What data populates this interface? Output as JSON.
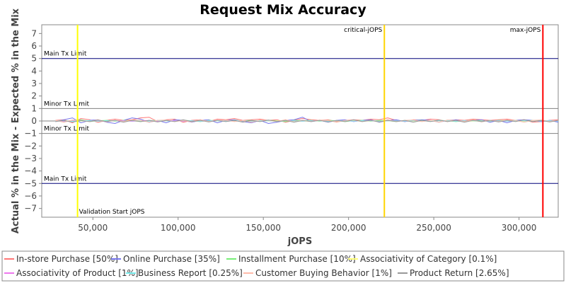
{
  "chart_data": {
    "type": "line",
    "title": "Request Mix Accuracy",
    "xlabel": "jOPS",
    "ylabel": "Actual % in the Mix - Expected % in the Mix",
    "xlim": [
      20000,
      323000
    ],
    "ylim": [
      -7.7,
      7.7
    ],
    "x_ticks": [
      50000,
      100000,
      150000,
      200000,
      250000,
      300000
    ],
    "x_tick_labels": [
      "50,000",
      "100,000",
      "150,000",
      "200,000",
      "250,000",
      "300,000"
    ],
    "y_ticks": [
      7,
      6,
      5,
      4,
      3,
      2,
      1,
      0,
      -1,
      -2,
      -3,
      -4,
      -5,
      -6,
      -7
    ],
    "y_tick_labels": [
      "7",
      "6",
      "5",
      "4",
      "3",
      "2",
      "1",
      "0",
      "−1",
      "−2",
      "−3",
      "−4",
      "−5",
      "−6",
      "−7"
    ],
    "grid": false,
    "legend_position": "bottom",
    "limit_lines": [
      {
        "label": "Main Tx Limit",
        "y": 5,
        "color": "#00007a",
        "label_side": "above"
      },
      {
        "label": "Minor Tx Limit",
        "y": 1,
        "color": "#808080",
        "label_side": "above"
      },
      {
        "label": "Minor Tx Limit",
        "y": -1,
        "color": "#808080",
        "label_side": "above"
      },
      {
        "label": "Main Tx Limit",
        "y": -5,
        "color": "#00007a",
        "label_side": "above"
      }
    ],
    "zero_line_color": "#808080",
    "vertical_markers": [
      {
        "label": "Validation Start jOPS",
        "x": 41000,
        "color": "#ffff00",
        "label_position": "bottom-right"
      },
      {
        "label": "critical-jOPS",
        "x": 221000,
        "color": "#ffd400",
        "label_position": "top-right"
      },
      {
        "label": "max-jOPS",
        "x": 314000,
        "color": "#ff0000",
        "label_position": "top-left"
      }
    ],
    "x": [
      28000,
      33000,
      38000,
      43000,
      48000,
      53000,
      58000,
      63000,
      68000,
      73000,
      78000,
      83000,
      88000,
      93000,
      98000,
      103000,
      108000,
      113000,
      118000,
      123000,
      128000,
      133000,
      138000,
      143000,
      148000,
      153000,
      158000,
      163000,
      168000,
      173000,
      178000,
      183000,
      188000,
      193000,
      198000,
      203000,
      208000,
      213000,
      218000,
      223000,
      228000,
      233000,
      238000,
      243000,
      248000,
      253000,
      258000,
      263000,
      268000,
      273000,
      278000,
      283000,
      288000,
      293000,
      298000,
      303000,
      308000,
      313000,
      318000,
      323000
    ],
    "series": [
      {
        "name": "In-store Purchase [50%]",
        "color": "#ff7777",
        "values": [
          0.05,
          0.1,
          -0.15,
          0.2,
          0.1,
          -0.1,
          0.05,
          0.15,
          0.05,
          0.1,
          0.25,
          0.3,
          -0.05,
          0.1,
          0.15,
          -0.1,
          0.05,
          0.1,
          -0.05,
          0.15,
          0.1,
          0.2,
          0.05,
          0.1,
          0.15,
          0.05,
          0.1,
          -0.1,
          0.05,
          0.2,
          0.1,
          0.05,
          0.1,
          -0.05,
          0.05,
          0.1,
          0.05,
          0.15,
          0.1,
          0.25,
          0.05,
          -0.05,
          0.1,
          0.05,
          0.15,
          0.1,
          -0.05,
          0.1,
          0.05,
          0.15,
          0.1,
          0.05,
          0.1,
          0.15,
          0.05,
          0.1,
          -0.1,
          -0.05,
          0.05,
          0.1
        ]
      },
      {
        "name": "Online Purchase [35%]",
        "color": "#7777ee",
        "values": [
          -0.05,
          0.1,
          0.25,
          -0.15,
          0.05,
          0.1,
          -0.1,
          -0.2,
          0.05,
          0.25,
          0.15,
          -0.1,
          0.05,
          -0.15,
          0.1,
          0.05,
          -0.1,
          0.05,
          0.1,
          -0.15,
          0.05,
          0.1,
          -0.05,
          -0.15,
          0.05,
          -0.2,
          -0.1,
          0.05,
          0.1,
          0.3,
          -0.05,
          0.05,
          -0.1,
          0.05,
          0.1,
          -0.05,
          0.05,
          0.1,
          -0.1,
          0.05,
          0.1,
          -0.05,
          0.05,
          0.1,
          0.05,
          -0.1,
          0.05,
          0.1,
          -0.05,
          0.05,
          0.1,
          -0.1,
          0.05,
          -0.15,
          0.05,
          0.1,
          0.05,
          -0.05,
          0.05,
          -0.1
        ]
      },
      {
        "name": "Installment Purchase [10%]",
        "color": "#77ee77",
        "values": [
          0.02,
          -0.05,
          0.05,
          0.1,
          -0.05,
          0.02,
          0.05,
          -0.02,
          0.05,
          0.02,
          -0.05,
          0.05,
          0.02,
          0.05,
          -0.02,
          0.05,
          0.02,
          -0.05,
          0.05,
          0.02,
          -0.02,
          0.05,
          0.02,
          0.05,
          -0.02,
          0.05,
          0.02,
          -0.05,
          0.05,
          0.02,
          0.05,
          -0.02,
          0.05,
          0.02,
          -0.05,
          0.02,
          0.05,
          -0.02,
          0.05,
          0.02,
          -0.05,
          0.05,
          0.02,
          0.05,
          -0.02,
          0.05,
          0.02,
          -0.05,
          0.02,
          0.05,
          0.02,
          -0.02,
          0.05,
          0.02,
          0.05,
          -0.02,
          0.05,
          0.02,
          -0.05,
          0.02
        ]
      },
      {
        "name": "Associativity of Category [0.1%]",
        "color": "#ffff77",
        "values": [
          0,
          0.01,
          0,
          -0.01,
          0,
          0.01,
          0,
          0,
          0.01,
          0,
          -0.01,
          0,
          0,
          0.01,
          0,
          0,
          -0.01,
          0,
          0.01,
          0,
          0,
          0.01,
          0,
          -0.01,
          0,
          0,
          0.01,
          0,
          0,
          -0.01,
          0,
          0.01,
          0,
          0,
          0.01,
          0,
          -0.01,
          0,
          0,
          0.01,
          0,
          0,
          -0.01,
          0,
          0.01,
          0,
          0,
          0.01,
          0,
          -0.01,
          0,
          0,
          0.01,
          0,
          0,
          -0.01,
          0,
          0.01,
          0,
          0
        ]
      },
      {
        "name": "Associativity of Product [1%]",
        "color": "#ee77ee",
        "values": [
          0.02,
          -0.03,
          0.04,
          0.02,
          -0.02,
          0.03,
          -0.02,
          0.02,
          0.03,
          -0.03,
          0.02,
          0.04,
          -0.02,
          0.02,
          0.03,
          -0.02,
          0.02,
          -0.03,
          0.03,
          0.02,
          -0.02,
          0.02,
          0.03,
          -0.02,
          0.02,
          0.03,
          -0.03,
          0.02,
          0.02,
          -0.02,
          0.03,
          0.02,
          -0.02,
          0.02,
          0.03,
          -0.03,
          0.02,
          0.02,
          -0.02,
          0.03,
          0.02,
          -0.02,
          0.02,
          0.03,
          -0.03,
          0.02,
          0.02,
          -0.02,
          0.03,
          0.02,
          -0.02,
          0.02,
          0.03,
          -0.03,
          0.02,
          0.02,
          -0.02,
          0.03,
          0.02,
          -0.02
        ]
      },
      {
        "name": "Business Report [0.25%]",
        "color": "#77eeee",
        "values": [
          0.01,
          0.02,
          -0.02,
          0.01,
          0.03,
          -0.01,
          0.02,
          0.01,
          -0.02,
          0.02,
          0.01,
          -0.01,
          0.03,
          0.01,
          -0.02,
          0.02,
          0.01,
          -0.01,
          0.02,
          0.01,
          -0.02,
          0.01,
          0.03,
          -0.01,
          0.02,
          0.01,
          -0.02,
          0.02,
          0.01,
          -0.01,
          0.02,
          0.01,
          -0.02,
          0.01,
          0.03,
          -0.01,
          0.02,
          0.01,
          -0.02,
          0.02,
          0.01,
          -0.01,
          0.02,
          0.01,
          -0.02,
          0.01,
          0.03,
          -0.01,
          0.02,
          0.01,
          -0.02,
          0.02,
          0.01,
          -0.01,
          0.02,
          0.01,
          -0.02,
          0.01,
          0.02,
          -0.01
        ]
      },
      {
        "name": "Customer Buying Behavior [1%]",
        "color": "#ffbbaa",
        "values": [
          0.05,
          -0.1,
          0.08,
          0.05,
          -0.05,
          0.1,
          -0.08,
          0.05,
          -0.05,
          0.08,
          0.05,
          -0.1,
          0.05,
          0.08,
          -0.05,
          0.05,
          -0.08,
          0.1,
          -0.05,
          0.05,
          0.08,
          -0.05,
          0.05,
          -0.1,
          0.08,
          0.05,
          -0.05,
          0.1,
          -0.08,
          0.05,
          -0.05,
          0.08,
          0.05,
          -0.1,
          0.05,
          0.08,
          -0.05,
          0.05,
          -0.08,
          0.1,
          -0.05,
          0.05,
          0.08,
          -0.05,
          0.05,
          -0.1,
          0.08,
          0.05,
          -0.05,
          0.1,
          -0.08,
          0.05,
          -0.05,
          0.08,
          0.05,
          -0.1,
          0.05,
          0.08,
          -0.05,
          0.05
        ]
      },
      {
        "name": "Product Return [2.65%]",
        "color": "#999999",
        "values": [
          -0.05,
          0.05,
          -0.1,
          0.05,
          -0.05,
          0.08,
          -0.05,
          0.05,
          -0.1,
          0.05,
          -0.05,
          0.05,
          -0.08,
          0.05,
          -0.05,
          0.1,
          -0.05,
          0.05,
          -0.08,
          0.05,
          -0.05,
          0.05,
          -0.1,
          0.05,
          -0.05,
          0.08,
          -0.05,
          0.05,
          -0.1,
          0.05,
          -0.05,
          0.05,
          -0.08,
          0.05,
          -0.05,
          0.1,
          -0.05,
          0.05,
          -0.08,
          0.05,
          -0.05,
          0.05,
          -0.1,
          0.05,
          -0.05,
          0.08,
          -0.05,
          0.05,
          -0.1,
          0.05,
          -0.05,
          0.05,
          -0.08,
          0.05,
          -0.05,
          0.1,
          -0.05,
          0.05,
          -0.08,
          0.05
        ]
      }
    ]
  }
}
